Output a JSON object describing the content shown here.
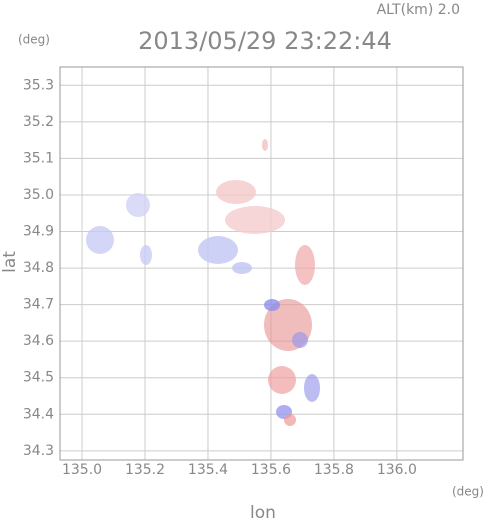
{
  "chart_data": {
    "type": "map",
    "annotation": "ALT(km) 2.0",
    "title": "2013/05/29 23:22:44",
    "y_unit": "(deg)",
    "x_unit": "(deg)",
    "ylabel": "lat",
    "xlabel": "lon",
    "xlim": [
      134.93,
      136.21
    ],
    "ylim": [
      34.275,
      35.35
    ],
    "xticks": [
      {
        "value": 135.0,
        "label": "135.0"
      },
      {
        "value": 135.2,
        "label": "135.2"
      },
      {
        "value": 135.4,
        "label": "135.4"
      },
      {
        "value": 135.6,
        "label": "135.6"
      },
      {
        "value": 135.8,
        "label": "135.8"
      },
      {
        "value": 136.0,
        "label": "136.0"
      }
    ],
    "yticks": [
      {
        "value": 34.3,
        "label": "34.3"
      },
      34.4,
      34.5,
      34.6,
      34.7,
      34.8,
      34.9,
      {
        "value": 35.0,
        "label": "35.0"
      },
      35.1,
      35.2,
      35.3
    ],
    "grid": true
  }
}
